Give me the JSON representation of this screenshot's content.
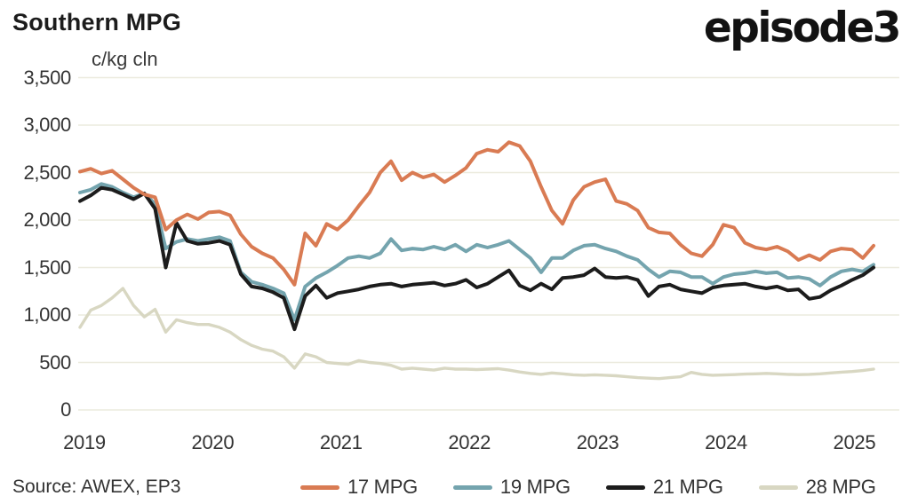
{
  "header": {
    "title": "Southern MPG",
    "unit_label": "c/kg cln",
    "logo_text": "episode3"
  },
  "footer": {
    "source": "Source: AWEX, EP3"
  },
  "colors": {
    "background": "#FFFFFF",
    "gridline": "#ECEBDE",
    "text": "#343434",
    "title": "#1C1C1C",
    "series_17mpg": "#D97B53",
    "series_19mpg": "#74A4AE",
    "series_21mpg": "#1C1C1C",
    "series_28mpg": "#D8D7C2"
  },
  "chart_data": {
    "type": "line",
    "title": "Southern MPG",
    "ylabel": "c/kg cln",
    "ylim": [
      0,
      3500
    ],
    "y_ticks": [
      0,
      500,
      1000,
      1500,
      2000,
      2500,
      3000,
      3500
    ],
    "y_tick_labels": [
      "0",
      "500",
      "1,000",
      "1,500",
      "2,000",
      "2,500",
      "3,000",
      "3,500"
    ],
    "x_tick_labels": [
      "2019",
      "2020",
      "2021",
      "2022",
      "2023",
      "2024",
      "2025"
    ],
    "x_unit": "month",
    "x_start": "2019-01",
    "x_end": "2025-03",
    "grid": "horizontal",
    "legend_position": "bottom",
    "series": [
      {
        "name": "17 MPG",
        "color": "#D97B53",
        "values": [
          2510,
          2540,
          2490,
          2520,
          2430,
          2340,
          2270,
          2240,
          1900,
          2000,
          2060,
          2010,
          2080,
          2090,
          2050,
          1850,
          1720,
          1650,
          1600,
          1480,
          1320,
          1860,
          1730,
          1960,
          1900,
          2000,
          2150,
          2290,
          2500,
          2620,
          2420,
          2500,
          2450,
          2480,
          2400,
          2470,
          2550,
          2700,
          2740,
          2720,
          2820,
          2780,
          2620,
          2350,
          2100,
          1960,
          2210,
          2350,
          2400,
          2430,
          2200,
          2170,
          2100,
          1920,
          1870,
          1860,
          1740,
          1650,
          1620,
          1740,
          1950,
          1920,
          1760,
          1710,
          1690,
          1720,
          1670,
          1580,
          1630,
          1580,
          1670,
          1700,
          1690,
          1600,
          1730
        ]
      },
      {
        "name": "19 MPG",
        "color": "#74A4AE",
        "values": [
          2290,
          2320,
          2380,
          2350,
          2290,
          2240,
          2280,
          2170,
          1700,
          1770,
          1800,
          1780,
          1800,
          1820,
          1780,
          1450,
          1350,
          1320,
          1280,
          1230,
          950,
          1300,
          1390,
          1450,
          1520,
          1600,
          1620,
          1600,
          1650,
          1800,
          1680,
          1700,
          1690,
          1720,
          1690,
          1740,
          1670,
          1740,
          1710,
          1740,
          1780,
          1690,
          1600,
          1450,
          1600,
          1600,
          1680,
          1730,
          1740,
          1700,
          1670,
          1620,
          1580,
          1480,
          1400,
          1460,
          1450,
          1400,
          1400,
          1330,
          1400,
          1430,
          1440,
          1460,
          1440,
          1450,
          1390,
          1400,
          1380,
          1310,
          1400,
          1460,
          1480,
          1460,
          1530
        ]
      },
      {
        "name": "21 MPG",
        "color": "#1C1C1C",
        "values": [
          2200,
          2260,
          2340,
          2320,
          2270,
          2220,
          2280,
          2120,
          1500,
          1970,
          1780,
          1750,
          1760,
          1780,
          1740,
          1430,
          1300,
          1280,
          1240,
          1180,
          850,
          1200,
          1310,
          1180,
          1230,
          1250,
          1270,
          1300,
          1320,
          1330,
          1300,
          1320,
          1330,
          1340,
          1310,
          1330,
          1370,
          1290,
          1330,
          1400,
          1470,
          1310,
          1260,
          1330,
          1270,
          1390,
          1400,
          1420,
          1490,
          1400,
          1390,
          1400,
          1370,
          1200,
          1300,
          1320,
          1270,
          1250,
          1230,
          1290,
          1310,
          1320,
          1330,
          1300,
          1280,
          1300,
          1260,
          1270,
          1170,
          1190,
          1260,
          1310,
          1370,
          1420,
          1500
        ]
      },
      {
        "name": "28 MPG",
        "color": "#D8D7C2",
        "values": [
          870,
          1050,
          1100,
          1180,
          1280,
          1100,
          980,
          1060,
          820,
          950,
          920,
          900,
          900,
          870,
          820,
          740,
          680,
          640,
          620,
          560,
          440,
          590,
          560,
          500,
          490,
          480,
          520,
          500,
          490,
          470,
          430,
          440,
          430,
          420,
          440,
          430,
          430,
          425,
          430,
          435,
          420,
          400,
          385,
          375,
          390,
          380,
          370,
          365,
          370,
          365,
          360,
          350,
          340,
          335,
          330,
          340,
          350,
          395,
          375,
          365,
          368,
          372,
          378,
          380,
          385,
          380,
          375,
          372,
          375,
          380,
          390,
          398,
          405,
          415,
          430
        ]
      }
    ]
  }
}
